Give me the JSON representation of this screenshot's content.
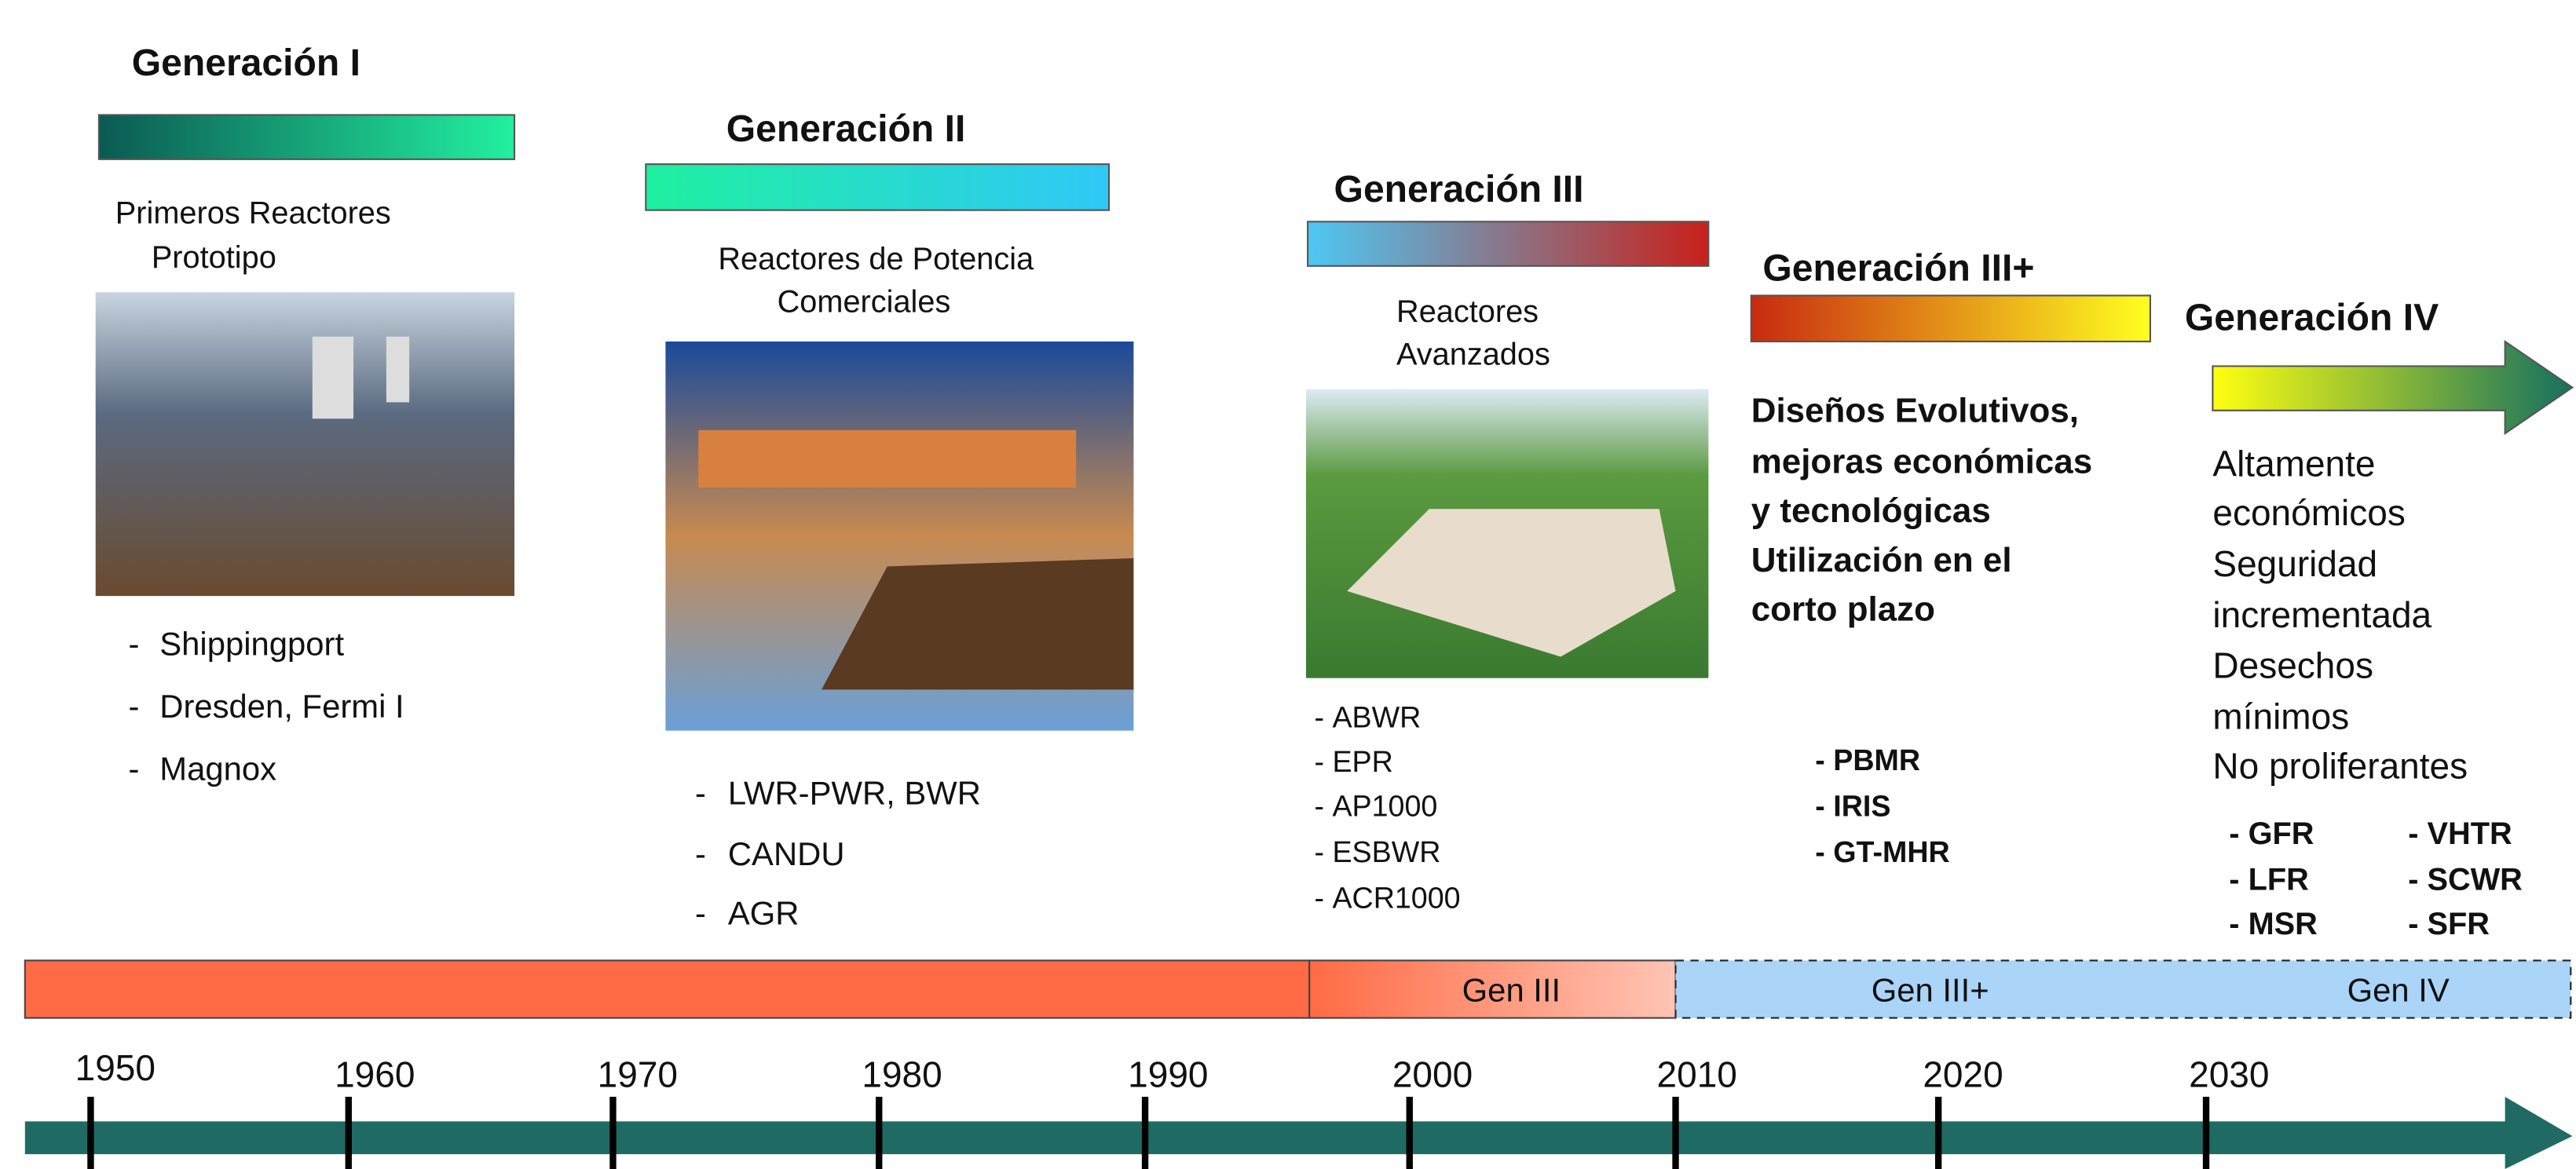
{
  "generations": [
    {
      "title": "Generación I",
      "description": [
        "Primeros Reactores",
        "Prototipo"
      ],
      "items": [
        "Shippingport",
        "Dresden, Fermi I",
        "Magnox"
      ]
    },
    {
      "title": "Generación II",
      "description": [
        "Reactores de Potencia",
        "Comerciales"
      ],
      "items": [
        "LWR-PWR, BWR",
        "CANDU",
        "AGR"
      ]
    },
    {
      "title": "Generación III",
      "description": [
        "Reactores",
        "Avanzados"
      ],
      "items": [
        "ABWR",
        "EPR",
        "AP1000",
        "ESBWR",
        "ACR1000"
      ]
    },
    {
      "title": "Generación III+",
      "description": [
        "Diseños Evolutivos,",
        "mejoras económicas",
        "y tecnológicas",
        "Utilización en el",
        "corto plazo"
      ],
      "items": [
        "PBMR",
        "IRIS",
        "GT-MHR"
      ]
    },
    {
      "title": "Generación IV",
      "description": [
        "Altamente",
        "económicos",
        "Seguridad",
        "incrementada",
        "Desechos",
        "mínimos",
        "No proliferantes"
      ],
      "items": [
        "GFR",
        "LFR",
        "MSR",
        "VHTR",
        "SCWR",
        "SFR"
      ]
    }
  ],
  "timeline": {
    "segments": [
      "Gen III",
      "Gen III+",
      "Gen IV"
    ],
    "years": [
      "1950",
      "1960",
      "1970",
      "1980",
      "1990",
      "2000",
      "2010",
      "2020",
      "2030"
    ]
  }
}
